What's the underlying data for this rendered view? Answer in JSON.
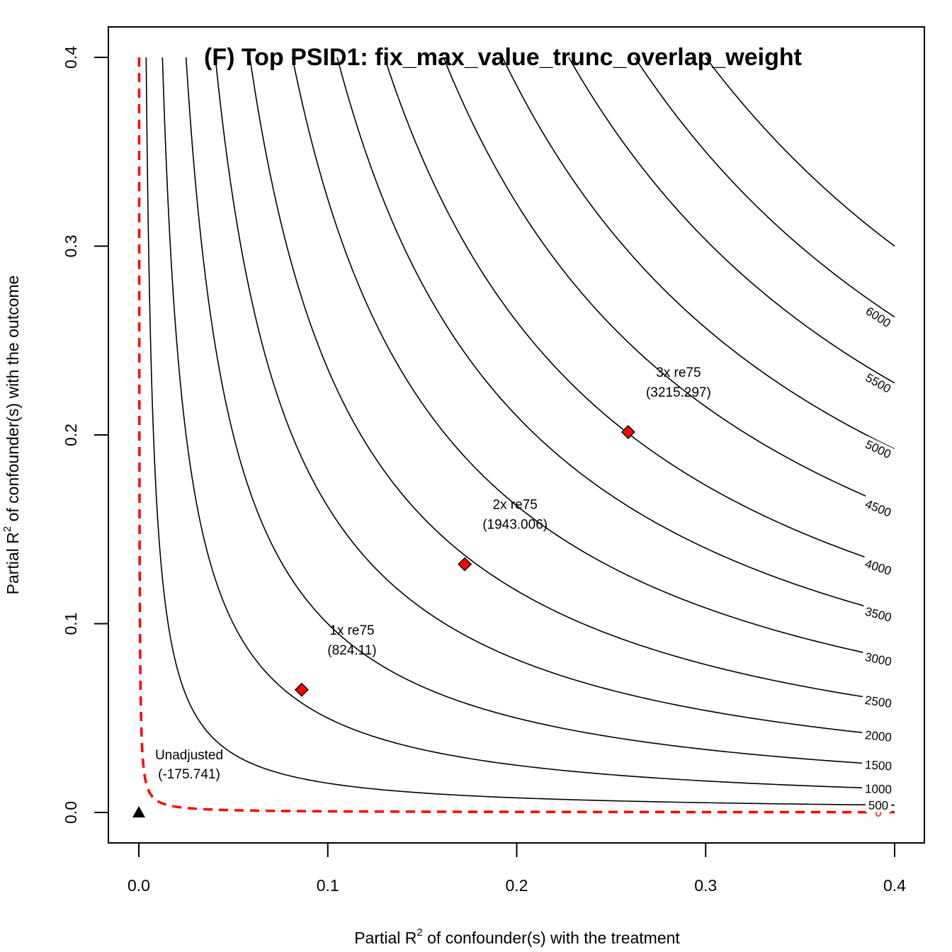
{
  "chart_data": {
    "type": "contour",
    "title": "(F) Top PSID1: fix_max_value_trunc_overlap_weight",
    "xlabel": {
      "main": "Partial R",
      "sup": "2",
      "rest": " of confounder(s) with the treatment"
    },
    "ylabel": {
      "main": "Partial R",
      "sup": "2",
      "rest": " of confounder(s) with the outcome"
    },
    "xlim": [
      0,
      0.4
    ],
    "ylim": [
      0,
      0.4
    ],
    "x_ticks": [
      {
        "value": 0.0,
        "label": "0.0"
      },
      {
        "value": 0.1,
        "label": "0.1"
      },
      {
        "value": 0.2,
        "label": "0.2"
      },
      {
        "value": 0.3,
        "label": "0.3"
      },
      {
        "value": 0.4,
        "label": "0.4"
      }
    ],
    "y_ticks": [
      {
        "value": 0.0,
        "label": "0.0"
      },
      {
        "value": 0.1,
        "label": "0.1"
      },
      {
        "value": 0.2,
        "label": "0.2"
      },
      {
        "value": 0.3,
        "label": "0.3"
      },
      {
        "value": 0.4,
        "label": "0.4"
      }
    ],
    "contours": [
      {
        "level": 0,
        "label": "0",
        "k": 6e-05,
        "color": "#ff0000",
        "dashed": true
      },
      {
        "level": 500,
        "label": "500",
        "k": 0.00155,
        "color": "#000000",
        "dashed": false
      },
      {
        "level": 1000,
        "label": "1000",
        "k": 0.005,
        "color": "#000000",
        "dashed": false
      },
      {
        "level": 1500,
        "label": "1500",
        "k": 0.01,
        "color": "#000000",
        "dashed": false
      },
      {
        "level": 2000,
        "label": "2000",
        "k": 0.0162,
        "color": "#000000",
        "dashed": false
      },
      {
        "level": 2500,
        "label": "2500",
        "k": 0.0235,
        "color": "#000000",
        "dashed": false
      },
      {
        "level": 3000,
        "label": "3000",
        "k": 0.0325,
        "color": "#000000",
        "dashed": false
      },
      {
        "level": 3500,
        "label": "3500",
        "k": 0.042,
        "color": "#000000",
        "dashed": false
      },
      {
        "level": 4000,
        "label": "4000",
        "k": 0.052,
        "color": "#000000",
        "dashed": false
      },
      {
        "level": 4500,
        "label": "4500",
        "k": 0.0645,
        "color": "#000000",
        "dashed": false
      },
      {
        "level": 5000,
        "label": "5000",
        "k": 0.077,
        "color": "#000000",
        "dashed": false
      },
      {
        "level": 5500,
        "label": "5500",
        "k": 0.091,
        "color": "#000000",
        "dashed": false
      },
      {
        "level": 6000,
        "label": "6000",
        "k": 0.105,
        "color": "#000000",
        "dashed": false
      },
      {
        "level": 6500,
        "label": "",
        "k": 0.12,
        "color": "#000000",
        "dashed": false
      }
    ],
    "unadjusted": {
      "x": 0.0,
      "y": 0.0,
      "label": "Unadjusted",
      "value": "(-175.741)"
    },
    "benchmarks": [
      {
        "x": 0.0862,
        "y": 0.065,
        "label": "1x re75",
        "value": "(824.11)"
      },
      {
        "x": 0.1725,
        "y": 0.1315,
        "label": "2x re75",
        "value": "(1943.006)"
      },
      {
        "x": 0.259,
        "y": 0.2015,
        "label": "3x re75",
        "value": "(3215.297)"
      }
    ],
    "colors": {
      "contour": "#000000",
      "zero_line": "#ff0000",
      "marker_fill": "#ff0000",
      "marker_stroke": "#000000"
    }
  }
}
